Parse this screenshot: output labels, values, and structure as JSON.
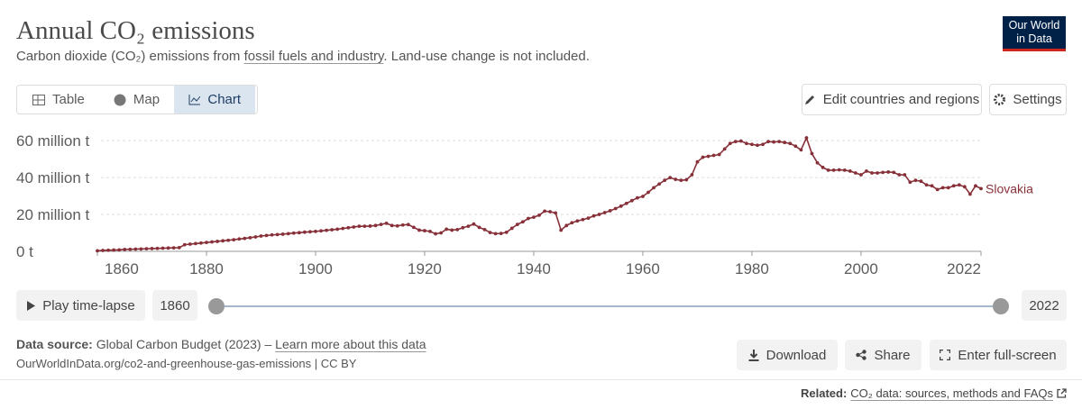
{
  "header": {
    "title": "Annual CO₂ emissions",
    "subtitle": [
      "Carbon dioxide (CO₂) emissions from ",
      "fossil fuels and industry",
      ". Land-use change is not included."
    ],
    "logo": [
      "Our World",
      "in Data"
    ]
  },
  "tabs": [
    "Table",
    "Map",
    "Chart"
  ],
  "controls": [
    "Edit countries and regions",
    "Settings"
  ],
  "timeline": {
    "play": "Play time-lapse"
  },
  "footer": {
    "source_label": "Data source:",
    "source": "Global Carbon Budget (2023) – ",
    "learn_more": "Learn more about this data",
    "url": "OurWorldInData.org/co2-and-greenhouse-gas-emissions | CC BY",
    "related_label": "Related:",
    "related": "CO₂ data: sources, methods and FAQs",
    "buttons": [
      "Download",
      "Share",
      "Enter full-screen"
    ]
  },
  "chart_data": {
    "type": "line",
    "x": [
      1860,
      1861,
      1862,
      1863,
      1864,
      1865,
      1866,
      1867,
      1868,
      1869,
      1870,
      1871,
      1872,
      1873,
      1874,
      1875,
      1876,
      1877,
      1878,
      1879,
      1880,
      1881,
      1882,
      1883,
      1884,
      1885,
      1886,
      1887,
      1888,
      1889,
      1890,
      1891,
      1892,
      1893,
      1894,
      1895,
      1896,
      1897,
      1898,
      1899,
      1900,
      1901,
      1902,
      1903,
      1904,
      1905,
      1906,
      1907,
      1908,
      1909,
      1910,
      1911,
      1912,
      1913,
      1914,
      1915,
      1916,
      1917,
      1918,
      1919,
      1920,
      1921,
      1922,
      1923,
      1924,
      1925,
      1926,
      1927,
      1928,
      1929,
      1930,
      1931,
      1932,
      1933,
      1934,
      1935,
      1936,
      1937,
      1938,
      1939,
      1940,
      1941,
      1942,
      1943,
      1944,
      1945,
      1946,
      1947,
      1948,
      1949,
      1950,
      1951,
      1952,
      1953,
      1954,
      1955,
      1956,
      1957,
      1958,
      1959,
      1960,
      1961,
      1962,
      1963,
      1964,
      1965,
      1966,
      1967,
      1968,
      1969,
      1970,
      1971,
      1972,
      1973,
      1974,
      1975,
      1976,
      1977,
      1978,
      1979,
      1980,
      1981,
      1982,
      1983,
      1984,
      1985,
      1986,
      1987,
      1988,
      1989,
      1990,
      1991,
      1992,
      1993,
      1994,
      1995,
      1996,
      1997,
      1998,
      1999,
      2000,
      2001,
      2002,
      2003,
      2004,
      2005,
      2006,
      2007,
      2008,
      2009,
      2010,
      2011,
      2012,
      2013,
      2014,
      2015,
      2016,
      2017,
      2018,
      2019,
      2020,
      2021,
      2022
    ],
    "series": [
      {
        "name": "Slovakia",
        "color": "#883039",
        "values": [
          0.3,
          0.5,
          0.6,
          0.7,
          0.8,
          1.0,
          1.1,
          1.2,
          1.3,
          1.4,
          1.5,
          1.6,
          1.7,
          1.8,
          1.9,
          2.0,
          3.6,
          3.9,
          4.2,
          4.5,
          4.8,
          5.1,
          5.4,
          5.7,
          6.0,
          6.3,
          6.7,
          7.0,
          7.4,
          7.8,
          8.3,
          8.6,
          8.9,
          9.1,
          9.3,
          9.6,
          9.9,
          10.1,
          10.4,
          10.6,
          10.8,
          11.1,
          11.4,
          11.7,
          12.0,
          12.4,
          12.8,
          13.2,
          13.6,
          13.6,
          13.7,
          14.0,
          14.6,
          15.2,
          14.0,
          13.8,
          14.3,
          14.5,
          13.0,
          11.5,
          11.2,
          10.8,
          9.5,
          10.0,
          12.0,
          11.5,
          11.8,
          12.8,
          13.6,
          14.8,
          13.0,
          11.8,
          10.2,
          9.6,
          9.7,
          10.3,
          12.5,
          14.6,
          16.0,
          17.8,
          18.5,
          19.6,
          21.8,
          21.5,
          20.8,
          11.5,
          14.0,
          15.5,
          16.5,
          17.2,
          18.0,
          19.2,
          20.0,
          21.0,
          22.0,
          23.2,
          24.5,
          26.0,
          27.5,
          29.0,
          29.8,
          32.0,
          34.5,
          36.5,
          38.5,
          40.0,
          39.0,
          38.5,
          38.8,
          41.5,
          48.5,
          51.0,
          51.5,
          52.0,
          52.5,
          55.5,
          58.5,
          59.5,
          59.8,
          58.5,
          58.0,
          57.5,
          58.0,
          59.5,
          59.3,
          59.5,
          59.0,
          58.5,
          57.0,
          55.0,
          61.5,
          53.0,
          48.0,
          45.5,
          44.0,
          44.0,
          44.2,
          44.0,
          43.5,
          42.5,
          41.5,
          43.5,
          42.5,
          42.5,
          42.8,
          43.0,
          42.8,
          41.5,
          41.5,
          37.5,
          38.5,
          38.0,
          36.0,
          35.5,
          33.5,
          34.5,
          34.5,
          35.5,
          36.0,
          35.0,
          31.0,
          35.5,
          34.0
        ]
      }
    ],
    "xlim": [
      1860,
      2022
    ],
    "xticks": [
      1860,
      1880,
      1900,
      1920,
      1940,
      1960,
      1980,
      2000,
      2022
    ],
    "ylim": [
      0,
      63
    ],
    "yticks": [
      {
        "value": 0,
        "label": "0 t"
      },
      {
        "value": 20,
        "label": "20 million t"
      },
      {
        "value": 40,
        "label": "40 million t"
      },
      {
        "value": 60,
        "label": "60 million t"
      }
    ],
    "grid": true
  }
}
